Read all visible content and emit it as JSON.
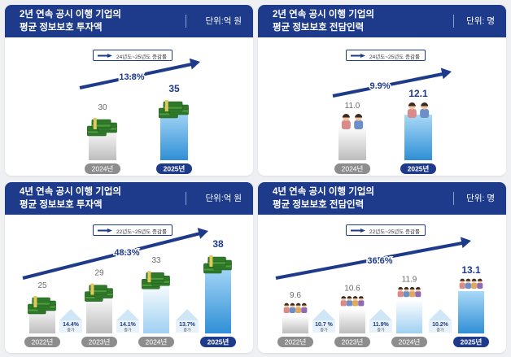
{
  "panels": [
    {
      "title_line1": "2년 연속 공시 이행 기업의",
      "title_line2": "평균 정보보호 투자액",
      "unit": "단위:억 원",
      "legend": "24년도~25년도 증감률",
      "growth": "13.8%",
      "icon": "money-icon"
    },
    {
      "title_line1": "2년 연속 공시 이행 기업의",
      "title_line2": "평균 정보보호 전담인력",
      "unit": "단위: 명",
      "legend": "24년도~25년도 증감률",
      "growth": "9.9%",
      "icon": "people-icon"
    },
    {
      "title_line1": "4년 연속 공시 이행 기업의",
      "title_line2": "평균 정보보호 투자액",
      "unit": "단위:억 원",
      "legend": "22년도~25년도 증감률",
      "growth": "48.3%",
      "icon": "money-icon",
      "yoy": [
        {
          "value": "14.4%",
          "label": "증가"
        },
        {
          "value": "14.1%",
          "label": "증가"
        },
        {
          "value": "13.7%",
          "label": "증가"
        }
      ]
    },
    {
      "title_line1": "4년 연속 공시 이행 기업의",
      "title_line2": "평균 정보보호 전담인력",
      "unit": "단위: 명",
      "legend": "22년도~25년도 증감률",
      "growth": "36.6%",
      "icon": "people-icon",
      "yoy": [
        {
          "value": "10.7 %",
          "label": "증가"
        },
        {
          "value": "11.9%",
          "label": "증가"
        },
        {
          "value": "10.2%",
          "label": "증가"
        }
      ]
    }
  ],
  "colors": {
    "header": "#1e3a8a",
    "highlight_bar": "#3b9fe0",
    "grey_bar": "#c8c8c8",
    "label_grey": "#6b6b6b",
    "label_navy": "#1e3a8a"
  },
  "chart_data": [
    {
      "type": "bar",
      "categories": [
        "2024년",
        "2025년"
      ],
      "values": [
        30,
        35
      ]
    },
    {
      "type": "bar",
      "categories": [
        "2024년",
        "2025년"
      ],
      "values": [
        11.0,
        12.1
      ]
    },
    {
      "type": "bar",
      "categories": [
        "2022년",
        "2023년",
        "2024년",
        "2025년"
      ],
      "values": [
        25,
        29,
        33,
        38
      ]
    },
    {
      "type": "bar",
      "categories": [
        "2022년",
        "2023년",
        "2024년",
        "2025년"
      ],
      "values": [
        9.6,
        10.6,
        11.9,
        13.1
      ]
    }
  ]
}
